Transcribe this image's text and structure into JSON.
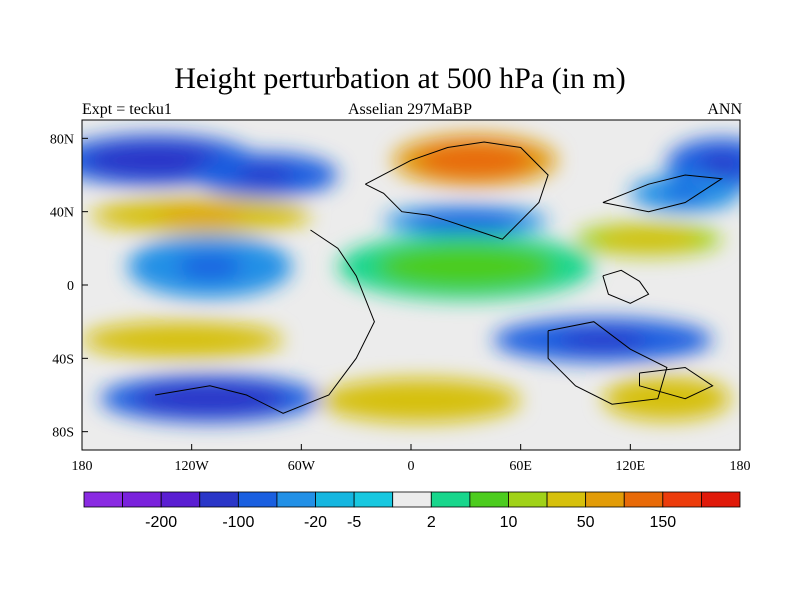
{
  "chart_data": {
    "type": "heatmap",
    "title": "Height perturbation at 500 hPa (in m)",
    "subtitle_left": "Expt = tecku1",
    "subtitle_center": "Asselian 297MaBP",
    "subtitle_right": "ANN",
    "x_ticks": [
      "180",
      "120W",
      "60W",
      "0",
      "60E",
      "120E",
      "180"
    ],
    "x_tick_values": [
      -180,
      -120,
      -60,
      0,
      60,
      120,
      180
    ],
    "y_ticks": [
      "80N",
      "40N",
      "0",
      "40S",
      "80S"
    ],
    "y_tick_values": [
      80,
      40,
      0,
      -40,
      -80
    ],
    "xlim": [
      -180,
      180
    ],
    "ylim": [
      -90,
      90
    ],
    "colorbar": {
      "colors": [
        "#8a2be2",
        "#7a22dc",
        "#5a1ed2",
        "#2a36c8",
        "#1a5fe0",
        "#2290e6",
        "#15b6e0",
        "#18c8e0",
        "#ececec",
        "#18d68c",
        "#4ccc1e",
        "#a0d218",
        "#d6c00c",
        "#e29c08",
        "#e86a08",
        "#ec3c0c",
        "#e01a0a"
      ],
      "labels": [
        "-200",
        "-100",
        "-20",
        "-5",
        "2",
        "10",
        "50",
        "150"
      ],
      "label_after_boundary": [
        2,
        4,
        6,
        7,
        9,
        11,
        13,
        15
      ]
    },
    "features": [
      {
        "name": "n-pacific-low",
        "lon": -140,
        "lat": 68,
        "value": -80,
        "rx": 55,
        "ry": 14
      },
      {
        "name": "ne-pacific-low",
        "lon": -80,
        "lat": 60,
        "value": -50,
        "rx": 40,
        "ry": 12
      },
      {
        "name": "e-asia-high",
        "lon": 35,
        "lat": 68,
        "value": 150,
        "rx": 45,
        "ry": 14
      },
      {
        "name": "n-pacific-high",
        "lon": -115,
        "lat": 38,
        "value": 60,
        "rx": 60,
        "ry": 10
      },
      {
        "name": "tethys-low",
        "lon": 30,
        "lat": 35,
        "value": -30,
        "rx": 45,
        "ry": 8
      },
      {
        "name": "far-east-low",
        "lon": 170,
        "lat": 66,
        "value": -60,
        "rx": 30,
        "ry": 14
      },
      {
        "name": "east-mid-low",
        "lon": 150,
        "lat": 50,
        "value": -20,
        "rx": 30,
        "ry": 10
      },
      {
        "name": "east-tethys-high",
        "lon": 130,
        "lat": 25,
        "value": 30,
        "rx": 40,
        "ry": 9
      },
      {
        "name": "tropical-pacific-low",
        "lon": -110,
        "lat": 10,
        "value": -20,
        "rx": 45,
        "ry": 17
      },
      {
        "name": "s-pacific-high",
        "lon": -125,
        "lat": -30,
        "value": 50,
        "rx": 55,
        "ry": 10
      },
      {
        "name": "s-pacific-low",
        "lon": -110,
        "lat": -62,
        "value": -80,
        "rx": 60,
        "ry": 13
      },
      {
        "name": "s-indian-low",
        "lon": 105,
        "lat": -30,
        "value": -50,
        "rx": 60,
        "ry": 12
      },
      {
        "name": "s-atlantic-high",
        "lon": 5,
        "lat": -63,
        "value": 50,
        "rx": 55,
        "ry": 12
      },
      {
        "name": "s-indian-high",
        "lon": 140,
        "lat": -62,
        "value": 50,
        "rx": 35,
        "ry": 12
      },
      {
        "name": "equatorial-green",
        "lon": 30,
        "lat": 10,
        "value": 8,
        "rx": 70,
        "ry": 18
      }
    ]
  }
}
